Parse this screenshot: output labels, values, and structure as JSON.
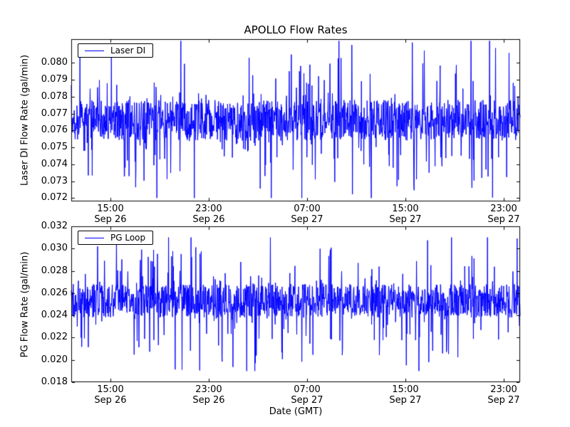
{
  "figure_title": "APOLLO Flow Rates",
  "xlabel": "Date (GMT)",
  "line_color": "#0000ff",
  "chart_data": [
    {
      "type": "line",
      "title": "APOLLO Flow Rates",
      "ylabel": "Laser DI Flow Rate (gal/min)",
      "legend": "Laser DI",
      "legend_position": "upper left",
      "line_color": "#0000ff",
      "grid": false,
      "ylim": [
        0.0718,
        0.0814
      ],
      "yticks": [
        0.072,
        0.073,
        0.074,
        0.075,
        0.076,
        0.077,
        0.078,
        0.079,
        0.08
      ],
      "ytick_decimals": 3,
      "xticks": [
        {
          "frac": 0.0873,
          "time": "15:00",
          "date": "Sep 26"
        },
        {
          "frac": 0.3063,
          "time": "23:00",
          "date": "Sep 26"
        },
        {
          "frac": 0.5254,
          "time": "07:00",
          "date": "Sep 27"
        },
        {
          "frac": 0.7444,
          "time": "15:00",
          "date": "Sep 27"
        },
        {
          "frac": 0.9635,
          "time": "23:00",
          "date": "Sep 27"
        }
      ],
      "series": [
        {
          "name": "Laser DI",
          "description": "high-frequency noisy flow-rate signal sampled continuously from ~Sep 26 12:00 GMT to ~Sep 28 00:00 GMT",
          "mean": 0.0766,
          "dense_band": [
            0.0754,
            0.0778
          ],
          "min": 0.072,
          "max": 0.0813,
          "synthesis": {
            "seed": 1337,
            "points": 1500,
            "band": 0.0012,
            "spike_prob": 0.22,
            "spike_pow": 2.2,
            "spike_max": 0.0045
          }
        }
      ]
    },
    {
      "type": "line",
      "title": "",
      "ylabel": "PG Flow Rate (gal/min)",
      "legend": "PG Loop",
      "legend_position": "upper left",
      "line_color": "#0000ff",
      "grid": false,
      "ylim": [
        0.018,
        0.032
      ],
      "yticks": [
        0.018,
        0.02,
        0.022,
        0.024,
        0.026,
        0.028,
        0.03,
        0.032
      ],
      "ytick_decimals": 3,
      "xticks": [
        {
          "frac": 0.0873,
          "time": "15:00",
          "date": "Sep 26"
        },
        {
          "frac": 0.3063,
          "time": "23:00",
          "date": "Sep 26"
        },
        {
          "frac": 0.5254,
          "time": "07:00",
          "date": "Sep 27"
        },
        {
          "frac": 0.7444,
          "time": "15:00",
          "date": "Sep 27"
        },
        {
          "frac": 0.9635,
          "time": "23:00",
          "date": "Sep 27"
        }
      ],
      "series": [
        {
          "name": "PG Loop",
          "description": "high-frequency noisy flow-rate signal sampled continuously from ~Sep 26 12:00 GMT to ~Sep 28 00:00 GMT",
          "mean": 0.0253,
          "dense_band": [
            0.0238,
            0.0268
          ],
          "min": 0.019,
          "max": 0.031,
          "synthesis": {
            "seed": 2024,
            "points": 1500,
            "band": 0.0015,
            "spike_prob": 0.25,
            "spike_pow": 2.0,
            "spike_max": 0.0056
          }
        }
      ]
    }
  ]
}
